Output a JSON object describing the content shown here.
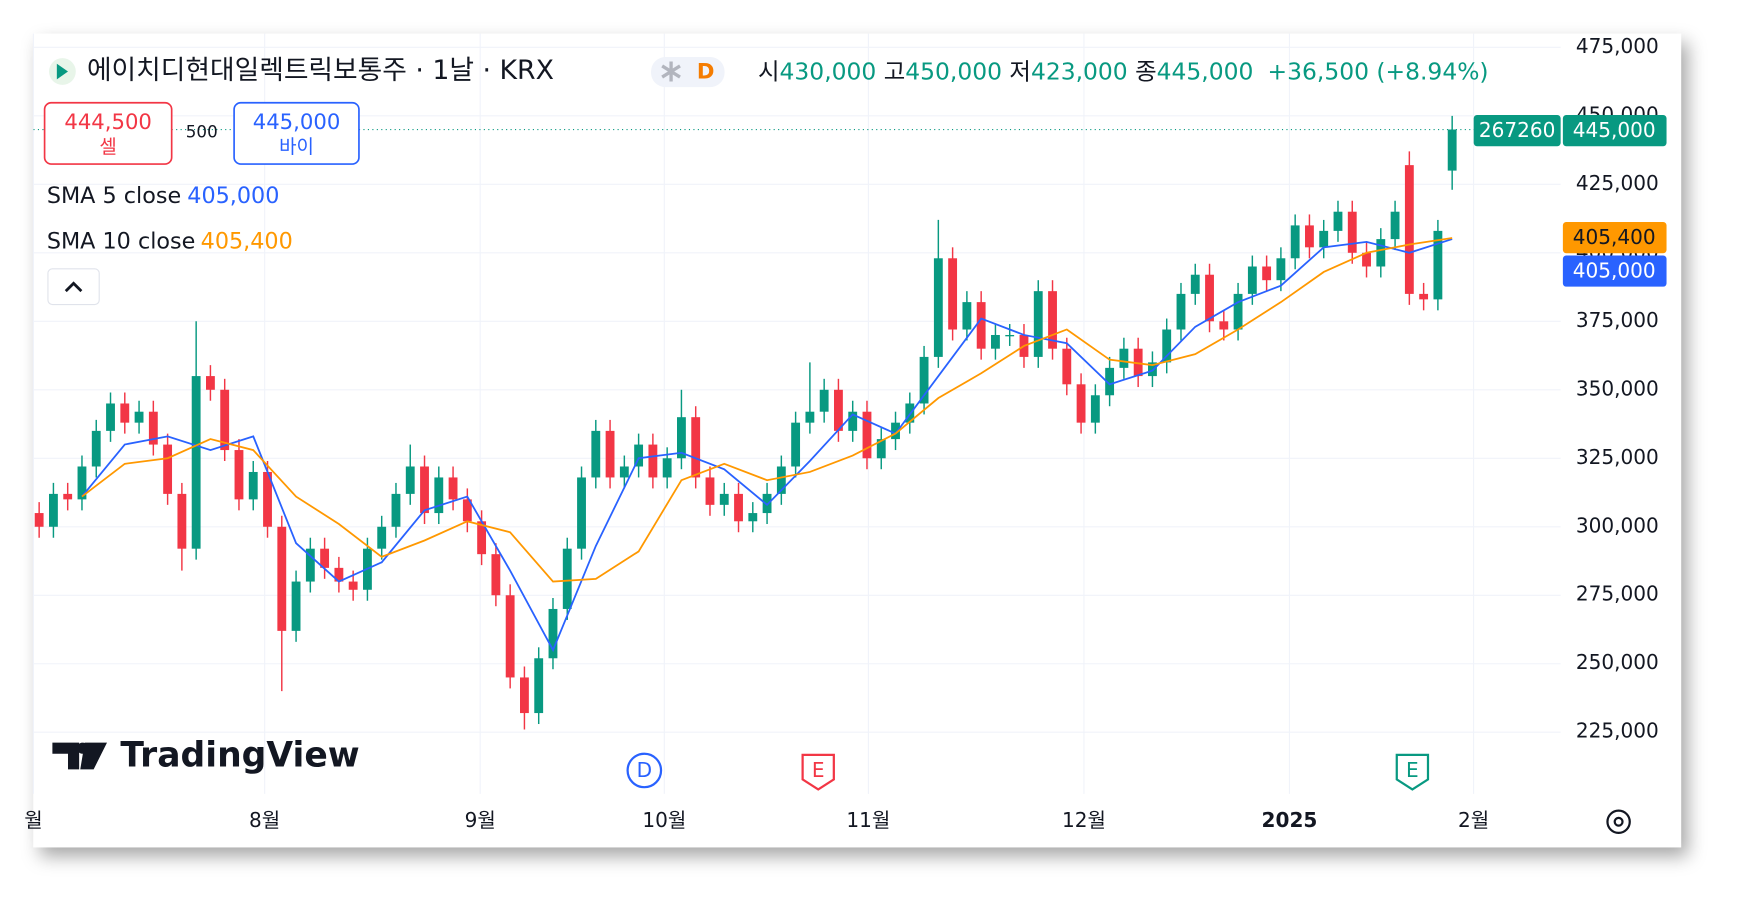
{
  "chart_data": {
    "type": "candlestick",
    "title": "에이치디현대일렉트릭보통주 · 1날 · KRX",
    "badge": "D",
    "quote": {
      "open_label": "시",
      "open": "430,000",
      "high_label": "고",
      "high": "450,000",
      "low_label": "저",
      "low": "423,000",
      "close_label": "종",
      "close": "445,000",
      "change": "+36,500 (+8.94%)"
    },
    "trade": {
      "sell_price": "444,500",
      "sell_label": "셀",
      "spread": "500",
      "buy_price": "445,000",
      "buy_label": "바이"
    },
    "price_tags": {
      "countdown": "267260",
      "last": "445,000",
      "sma10": "405,400",
      "sma5": "405,000"
    },
    "logo": "TradingView",
    "events": [
      {
        "label": "D"
      },
      {
        "label": "E"
      },
      {
        "label": "E"
      }
    ],
    "up_color": "#089981",
    "down_color": "#f23645",
    "open": [
      305000,
      300000,
      312000,
      310000,
      322000,
      335000,
      345000,
      338000,
      342000,
      330000,
      312000,
      292000,
      355000,
      350000,
      328000,
      310000,
      320000,
      300000,
      262000,
      280000,
      292000,
      285000,
      280000,
      277000,
      292000,
      300000,
      312000,
      322000,
      305000,
      318000,
      310000,
      302000,
      290000,
      275000,
      245000,
      232000,
      252000,
      270000,
      292000,
      318000,
      335000,
      318000,
      322000,
      330000,
      318000,
      325000,
      340000,
      318000,
      308000,
      312000,
      302000,
      305000,
      312000,
      322000,
      338000,
      342000,
      350000,
      335000,
      342000,
      325000,
      332000,
      338000,
      345000,
      362000,
      398000,
      372000,
      382000,
      365000,
      370000,
      370000,
      362000,
      386000,
      365000,
      352000,
      338000,
      348000,
      358000,
      365000,
      355000,
      360000,
      372000,
      385000,
      392000,
      375000,
      372000,
      385000,
      395000,
      390000,
      398000,
      410000,
      402000,
      408000,
      415000,
      400000,
      395000,
      405000,
      432000,
      385000,
      383000,
      430000
    ],
    "high": [
      309000,
      316000,
      316000,
      326000,
      339000,
      349000,
      349000,
      346000,
      346000,
      334000,
      316000,
      375000,
      359000,
      354000,
      332000,
      324000,
      324000,
      304000,
      284000,
      296000,
      296000,
      289000,
      284000,
      296000,
      304000,
      316000,
      330000,
      326000,
      322000,
      322000,
      314000,
      306000,
      294000,
      279000,
      249000,
      256000,
      274000,
      296000,
      322000,
      339000,
      339000,
      326000,
      334000,
      334000,
      329000,
      350000,
      344000,
      322000,
      316000,
      316000,
      309000,
      316000,
      326000,
      342000,
      360000,
      354000,
      354000,
      346000,
      346000,
      336000,
      342000,
      349000,
      366000,
      412000,
      402000,
      386000,
      386000,
      374000,
      374000,
      374000,
      390000,
      390000,
      369000,
      356000,
      352000,
      362000,
      369000,
      369000,
      364000,
      376000,
      389000,
      396000,
      396000,
      379000,
      389000,
      399000,
      399000,
      402000,
      414000,
      414000,
      412000,
      419000,
      419000,
      404000,
      409000,
      419000,
      437000,
      389000,
      412000,
      450000
    ],
    "low": [
      296000,
      296000,
      306000,
      306000,
      318000,
      331000,
      334000,
      334000,
      326000,
      308000,
      284000,
      288000,
      346000,
      324000,
      306000,
      306000,
      296000,
      240000,
      258000,
      276000,
      281000,
      276000,
      273000,
      273000,
      288000,
      296000,
      308000,
      301000,
      301000,
      306000,
      298000,
      286000,
      271000,
      241000,
      226000,
      228000,
      248000,
      266000,
      288000,
      314000,
      314000,
      314000,
      318000,
      314000,
      314000,
      321000,
      314000,
      304000,
      304000,
      298000,
      298000,
      301000,
      308000,
      318000,
      334000,
      338000,
      331000,
      331000,
      321000,
      321000,
      328000,
      334000,
      341000,
      358000,
      368000,
      368000,
      361000,
      361000,
      366000,
      358000,
      358000,
      361000,
      348000,
      334000,
      334000,
      344000,
      354000,
      351000,
      351000,
      356000,
      368000,
      381000,
      371000,
      368000,
      368000,
      381000,
      386000,
      386000,
      394000,
      398000,
      398000,
      404000,
      396000,
      391000,
      391000,
      401000,
      381000,
      379000,
      379000,
      423000
    ],
    "close": [
      300000,
      312000,
      310000,
      322000,
      335000,
      345000,
      338000,
      342000,
      330000,
      312000,
      292000,
      355000,
      350000,
      328000,
      310000,
      320000,
      300000,
      262000,
      280000,
      292000,
      285000,
      280000,
      277000,
      292000,
      300000,
      312000,
      322000,
      305000,
      318000,
      310000,
      302000,
      290000,
      275000,
      245000,
      232000,
      252000,
      270000,
      292000,
      318000,
      335000,
      318000,
      322000,
      330000,
      318000,
      325000,
      340000,
      318000,
      308000,
      312000,
      302000,
      305000,
      312000,
      322000,
      338000,
      342000,
      350000,
      335000,
      342000,
      325000,
      332000,
      338000,
      345000,
      362000,
      398000,
      372000,
      382000,
      365000,
      370000,
      370000,
      362000,
      386000,
      365000,
      352000,
      338000,
      348000,
      358000,
      365000,
      355000,
      360000,
      372000,
      385000,
      392000,
      375000,
      372000,
      385000,
      395000,
      390000,
      398000,
      410000,
      402000,
      408000,
      415000,
      400000,
      395000,
      405000,
      415000,
      385000,
      383000,
      408000,
      445000
    ],
    "series": [
      {
        "name": "SMA 5 close",
        "color": "#2962ff",
        "x": [
          3,
          6,
          9,
          12,
          15,
          18,
          21,
          24,
          27,
          30,
          33,
          36,
          39,
          42,
          45,
          48,
          51,
          54,
          57,
          60,
          63,
          66,
          69,
          72,
          75,
          78,
          81,
          84,
          87,
          90,
          93,
          96,
          99
        ],
        "values": [
          311000,
          330000,
          333000,
          328000,
          333000,
          294000,
          280000,
          287000,
          306000,
          311000,
          284000,
          255000,
          293000,
          325000,
          327000,
          321000,
          308000,
          324000,
          341000,
          334000,
          355000,
          376000,
          370000,
          367000,
          352000,
          357000,
          373000,
          382000,
          388000,
          402000,
          404000,
          400000,
          405000
        ]
      },
      {
        "name": "SMA 10 close",
        "color": "#ff9800",
        "x": [
          3,
          6,
          9,
          12,
          15,
          18,
          21,
          24,
          27,
          30,
          33,
          36,
          39,
          42,
          45,
          48,
          51,
          54,
          57,
          60,
          63,
          66,
          69,
          72,
          75,
          78,
          81,
          84,
          87,
          90,
          93,
          96,
          99
        ],
        "values": [
          311000,
          323000,
          325000,
          332000,
          328000,
          311000,
          301000,
          289000,
          295000,
          302000,
          298000,
          280000,
          281000,
          291000,
          317000,
          323000,
          317000,
          320000,
          326000,
          334000,
          347000,
          356000,
          366000,
          372000,
          361000,
          359000,
          363000,
          372000,
          382000,
          393000,
          400000,
          403000,
          405400
        ]
      }
    ],
    "legend_values": [
      "405,000",
      "405,400"
    ],
    "xlim": [
      -0.4,
      106.6
    ],
    "xticks": [
      {
        "value": -0.4,
        "label": "월"
      },
      {
        "value": 15.8,
        "label": "8월"
      },
      {
        "value": 30.9,
        "label": "9월"
      },
      {
        "value": 43.8,
        "label": "10월"
      },
      {
        "value": 58.1,
        "label": "11월"
      },
      {
        "value": 73.2,
        "label": "12월"
      },
      {
        "value": 87.6,
        "label": "2025"
      },
      {
        "value": 100.5,
        "label": "2월"
      }
    ],
    "ylim": [
      202500,
      480000
    ],
    "yticks": [
      {
        "value": 225000,
        "label": "225,000"
      },
      {
        "value": 250000,
        "label": "250,000"
      },
      {
        "value": 275000,
        "label": "275,000"
      },
      {
        "value": 300000,
        "label": "300,000"
      },
      {
        "value": 325000,
        "label": "325,000"
      },
      {
        "value": 350000,
        "label": "350,000"
      },
      {
        "value": 375000,
        "label": "375,000"
      },
      {
        "value": 400000,
        "label": "400,000"
      },
      {
        "value": 425000,
        "label": "425,000"
      },
      {
        "value": 450000,
        "label": "450,000"
      },
      {
        "value": 475000,
        "label": "475,000"
      }
    ],
    "grid": true
  }
}
